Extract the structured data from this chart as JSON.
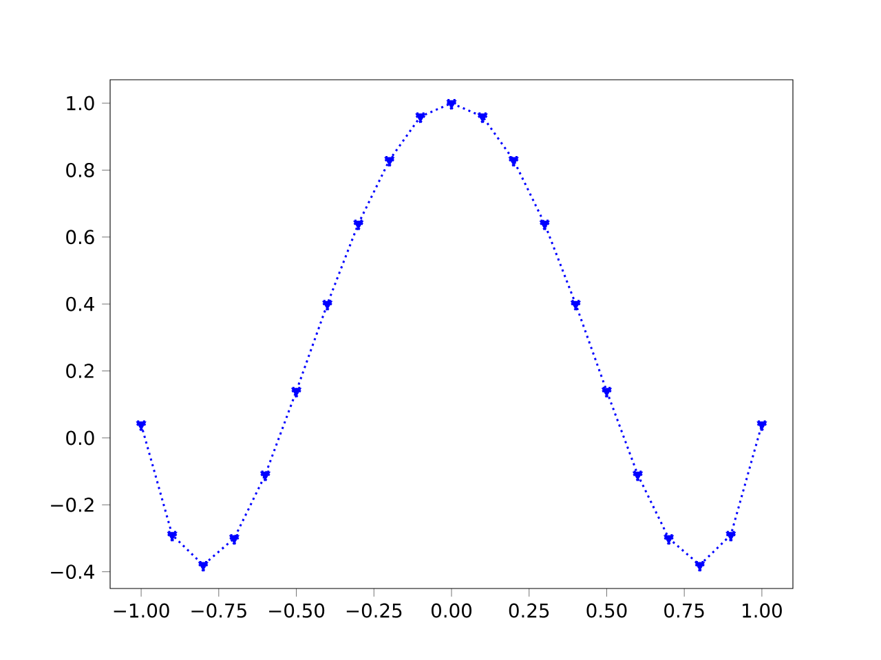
{
  "chart_data": {
    "type": "line",
    "x": [
      -1.0,
      -0.9,
      -0.8,
      -0.7,
      -0.6,
      -0.5,
      -0.4,
      -0.3,
      -0.2,
      -0.1,
      0.0,
      0.1,
      0.2,
      0.3,
      0.4,
      0.5,
      0.6,
      0.7,
      0.8,
      0.9,
      1.0
    ],
    "series": [
      {
        "color": "#0000ff",
        "values": [
          0.04,
          -0.29,
          -0.38,
          -0.3,
          -0.11,
          0.14,
          0.4,
          0.64,
          0.83,
          0.96,
          1.0,
          0.96,
          0.83,
          0.64,
          0.4,
          0.14,
          -0.11,
          -0.3,
          -0.38,
          -0.29,
          0.04
        ]
      }
    ],
    "marker": "triangle",
    "line_style": "dotted",
    "xlim": [
      -1.1,
      1.1
    ],
    "ylim": [
      -0.45,
      1.07
    ],
    "xticks": [
      {
        "value": -1.0,
        "label": "−1.00"
      },
      {
        "value": -0.75,
        "label": "−0.75"
      },
      {
        "value": -0.5,
        "label": "−0.50"
      },
      {
        "value": -0.25,
        "label": "−0.25"
      },
      {
        "value": 0.0,
        "label": "0.00"
      },
      {
        "value": 0.25,
        "label": "0.25"
      },
      {
        "value": 0.5,
        "label": "0.50"
      },
      {
        "value": 0.75,
        "label": "0.75"
      },
      {
        "value": 1.0,
        "label": "1.00"
      }
    ],
    "yticks": [
      {
        "value": -0.4,
        "label": "−0.4"
      },
      {
        "value": -0.2,
        "label": "−0.2"
      },
      {
        "value": 0.0,
        "label": "0.0"
      },
      {
        "value": 0.2,
        "label": "0.2"
      },
      {
        "value": 0.4,
        "label": "0.4"
      },
      {
        "value": 0.6,
        "label": "0.6"
      },
      {
        "value": 0.8,
        "label": "0.8"
      },
      {
        "value": 1.0,
        "label": "1.0"
      }
    ]
  }
}
